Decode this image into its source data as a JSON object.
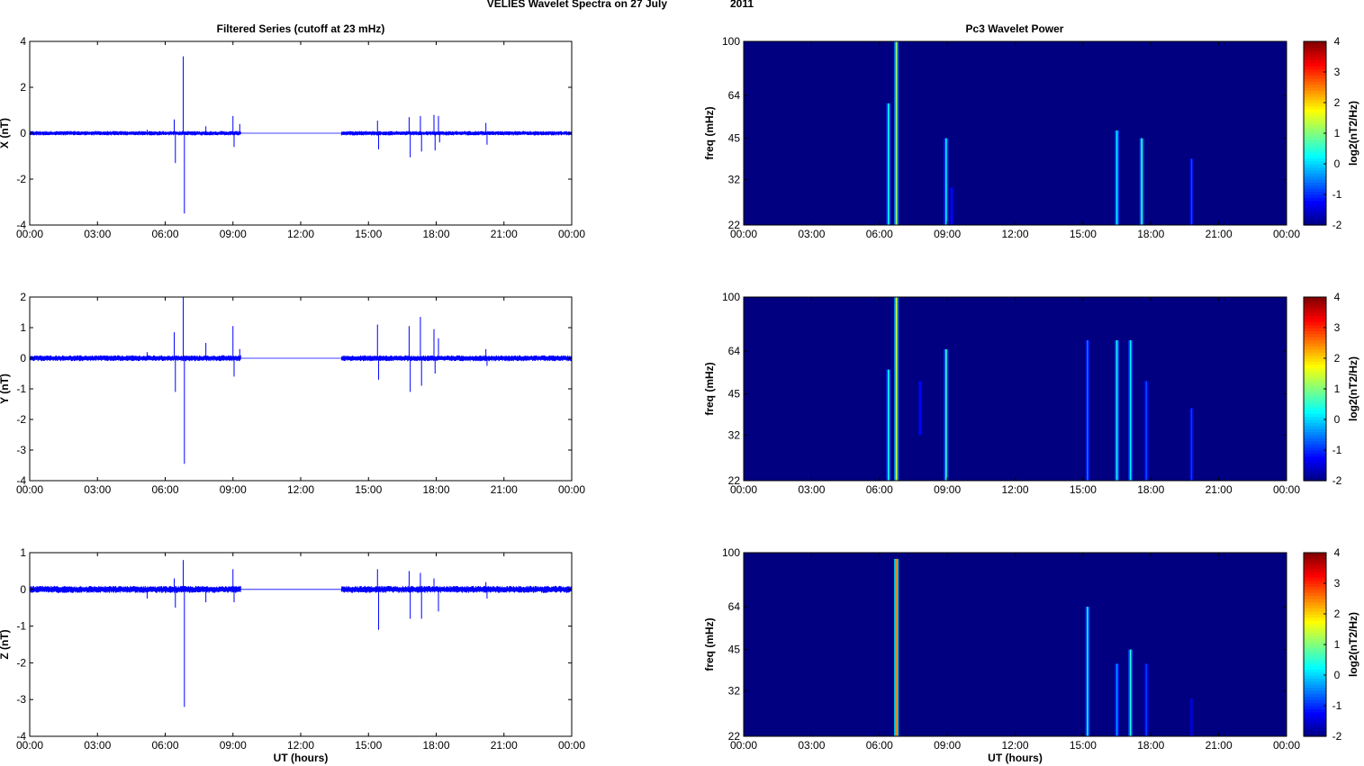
{
  "figure": {
    "title_left": "VELIES Wavelet Spectra on 27 July",
    "title_right": "2011",
    "left_title": "Filtered Series (cutoff at 23 mHz)",
    "right_title": "Pc3 Wavelet Power",
    "xlabel": "UT (hours)",
    "colorbar_label": "log2(nT2/Hz)"
  },
  "chart_data": [
    {
      "type": "line",
      "ylabel": "X (nT)",
      "xlabel": "",
      "xticks": [
        "00:00",
        "03:00",
        "06:00",
        "09:00",
        "12:00",
        "15:00",
        "18:00",
        "21:00",
        "00:00"
      ],
      "xlim": [
        0,
        24
      ],
      "ylim": [
        -4,
        4
      ],
      "yticks": [
        -4,
        -2,
        0,
        2,
        4
      ],
      "series": [
        {
          "color": "#0000ff",
          "noise_amplitude": 0.08,
          "active_intervals": [
            [
              0,
              9.35
            ],
            [
              13.8,
              24
            ]
          ],
          "spikes": [
            [
              5.2,
              0.15
            ],
            [
              6.4,
              0.6
            ],
            [
              6.45,
              -1.3
            ],
            [
              6.8,
              3.35
            ],
            [
              6.85,
              -3.5
            ],
            [
              7.8,
              0.3
            ],
            [
              9.0,
              0.75
            ],
            [
              9.05,
              -0.6
            ],
            [
              9.3,
              0.4
            ],
            [
              15.4,
              0.55
            ],
            [
              15.45,
              -0.7
            ],
            [
              16.8,
              0.7
            ],
            [
              16.85,
              -1.05
            ],
            [
              17.3,
              0.75
            ],
            [
              17.35,
              -0.8
            ],
            [
              17.9,
              0.8
            ],
            [
              17.95,
              -0.75
            ],
            [
              18.1,
              0.75
            ],
            [
              18.15,
              -0.4
            ],
            [
              20.2,
              0.45
            ],
            [
              20.25,
              -0.5
            ]
          ]
        }
      ]
    },
    {
      "type": "line",
      "ylabel": "Y (nT)",
      "xlabel": "",
      "xticks": [
        "00:00",
        "03:00",
        "06:00",
        "09:00",
        "12:00",
        "15:00",
        "18:00",
        "21:00",
        "00:00"
      ],
      "xlim": [
        0,
        24
      ],
      "ylim": [
        -4,
        2
      ],
      "yticks": [
        -4,
        -3,
        -2,
        -1,
        0,
        1,
        2
      ],
      "series": [
        {
          "color": "#0000ff",
          "noise_amplitude": 0.08,
          "active_intervals": [
            [
              0,
              9.35
            ],
            [
              13.8,
              24
            ]
          ],
          "spikes": [
            [
              5.2,
              0.2
            ],
            [
              6.4,
              0.85
            ],
            [
              6.45,
              -1.1
            ],
            [
              6.8,
              2.0
            ],
            [
              6.85,
              -3.45
            ],
            [
              7.8,
              0.5
            ],
            [
              9.0,
              1.05
            ],
            [
              9.05,
              -0.6
            ],
            [
              9.3,
              0.3
            ],
            [
              15.4,
              1.1
            ],
            [
              15.45,
              -0.7
            ],
            [
              16.8,
              1.05
            ],
            [
              16.85,
              -1.1
            ],
            [
              17.3,
              1.35
            ],
            [
              17.35,
              -0.9
            ],
            [
              17.9,
              0.95
            ],
            [
              17.95,
              -0.5
            ],
            [
              18.1,
              0.65
            ],
            [
              20.2,
              0.3
            ],
            [
              20.25,
              -0.25
            ]
          ]
        }
      ]
    },
    {
      "type": "line",
      "ylabel": "Z (nT)",
      "xlabel": "UT (hours)",
      "xticks": [
        "00:00",
        "03:00",
        "06:00",
        "09:00",
        "12:00",
        "15:00",
        "18:00",
        "21:00",
        "00:00"
      ],
      "xlim": [
        0,
        24
      ],
      "ylim": [
        -4,
        1
      ],
      "yticks": [
        -4,
        -3,
        -2,
        -1,
        0,
        1
      ],
      "series": [
        {
          "color": "#0000ff",
          "noise_amplitude": 0.08,
          "active_intervals": [
            [
              0,
              9.35
            ],
            [
              13.8,
              24
            ]
          ],
          "spikes": [
            [
              5.2,
              -0.25
            ],
            [
              6.4,
              0.3
            ],
            [
              6.45,
              -0.5
            ],
            [
              6.8,
              0.8
            ],
            [
              6.85,
              -3.2
            ],
            [
              7.8,
              -0.35
            ],
            [
              9.0,
              0.55
            ],
            [
              9.05,
              -0.35
            ],
            [
              15.4,
              0.55
            ],
            [
              15.45,
              -1.1
            ],
            [
              16.8,
              0.5
            ],
            [
              16.85,
              -0.8
            ],
            [
              17.3,
              0.45
            ],
            [
              17.35,
              -0.8
            ],
            [
              17.9,
              0.3
            ],
            [
              18.1,
              -0.6
            ],
            [
              20.2,
              0.2
            ],
            [
              20.25,
              -0.25
            ]
          ]
        }
      ]
    },
    {
      "type": "heatmap",
      "ylabel": "freq (mHz)",
      "xlabel": "",
      "xticks": [
        "00:00",
        "03:00",
        "06:00",
        "09:00",
        "12:00",
        "15:00",
        "18:00",
        "21:00",
        "00:00"
      ],
      "xlim": [
        0,
        24
      ],
      "yscale": "log",
      "ylim": [
        22,
        100
      ],
      "yticks": [
        22,
        32,
        45,
        64,
        100
      ],
      "clim": [
        -2,
        4
      ],
      "cticks": [
        -2,
        -1,
        0,
        1,
        2,
        3,
        4
      ],
      "colormap": "jet",
      "background_value": -2,
      "streaks": [
        [
          6.4,
          0.3,
          60,
          22
        ],
        [
          6.75,
          1.2,
          100,
          22
        ],
        [
          8.95,
          0.2,
          45,
          22
        ],
        [
          9.2,
          -1.2,
          30,
          22
        ],
        [
          16.5,
          0.3,
          48,
          22
        ],
        [
          17.6,
          0.6,
          45,
          22
        ],
        [
          19.8,
          -0.8,
          38,
          22
        ]
      ]
    },
    {
      "type": "heatmap",
      "ylabel": "freq (mHz)",
      "xlabel": "",
      "xticks": [
        "00:00",
        "03:00",
        "06:00",
        "09:00",
        "12:00",
        "15:00",
        "18:00",
        "21:00",
        "00:00"
      ],
      "xlim": [
        0,
        24
      ],
      "yscale": "log",
      "ylim": [
        22,
        100
      ],
      "yticks": [
        22,
        32,
        45,
        64,
        100
      ],
      "clim": [
        -2,
        4
      ],
      "cticks": [
        -2,
        -1,
        0,
        1,
        2,
        3,
        4
      ],
      "colormap": "jet",
      "background_value": -2,
      "streaks": [
        [
          6.4,
          0.3,
          55,
          22
        ],
        [
          6.75,
          1.5,
          100,
          22
        ],
        [
          7.8,
          -1.2,
          50,
          32
        ],
        [
          8.95,
          0.6,
          65,
          22
        ],
        [
          15.2,
          -0.5,
          70,
          22
        ],
        [
          16.5,
          0.4,
          70,
          22
        ],
        [
          17.1,
          0.2,
          70,
          22
        ],
        [
          17.8,
          -0.8,
          50,
          22
        ],
        [
          19.8,
          -0.9,
          40,
          22
        ]
      ]
    },
    {
      "type": "heatmap",
      "ylabel": "freq (mHz)",
      "xlabel": "UT (hours)",
      "xticks": [
        "00:00",
        "03:00",
        "06:00",
        "09:00",
        "12:00",
        "15:00",
        "18:00",
        "21:00",
        "00:00"
      ],
      "xlim": [
        0,
        24
      ],
      "yscale": "log",
      "ylim": [
        22,
        100
      ],
      "yticks": [
        22,
        32,
        45,
        64,
        100
      ],
      "clim": [
        -2,
        4
      ],
      "cticks": [
        -2,
        -1,
        0,
        1,
        2,
        3,
        4
      ],
      "colormap": "jet",
      "background_value": -2,
      "streaks": [
        [
          6.75,
          2.5,
          95,
          22
        ],
        [
          15.2,
          0.3,
          64,
          22
        ],
        [
          16.5,
          -0.3,
          40,
          22
        ],
        [
          17.1,
          0.5,
          45,
          22
        ],
        [
          17.8,
          -0.9,
          40,
          22
        ],
        [
          19.8,
          -1.3,
          30,
          22
        ]
      ]
    }
  ]
}
